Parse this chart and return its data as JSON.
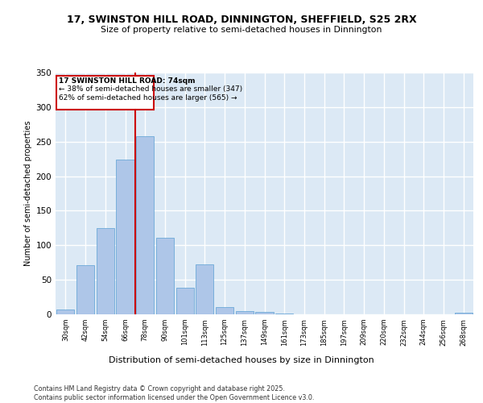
{
  "title1": "17, SWINSTON HILL ROAD, DINNINGTON, SHEFFIELD, S25 2RX",
  "title2": "Size of property relative to semi-detached houses in Dinnington",
  "xlabel": "Distribution of semi-detached houses by size in Dinnington",
  "ylabel": "Number of semi-detached properties",
  "footer1": "Contains HM Land Registry data © Crown copyright and database right 2025.",
  "footer2": "Contains public sector information licensed under the Open Government Licence v3.0.",
  "bar_labels": [
    "30sqm",
    "42sqm",
    "54sqm",
    "66sqm",
    "78sqm",
    "90sqm",
    "101sqm",
    "113sqm",
    "125sqm",
    "137sqm",
    "149sqm",
    "161sqm",
    "173sqm",
    "185sqm",
    "197sqm",
    "209sqm",
    "220sqm",
    "232sqm",
    "244sqm",
    "256sqm",
    "268sqm"
  ],
  "bar_values": [
    7,
    71,
    125,
    224,
    258,
    111,
    38,
    72,
    10,
    5,
    4,
    1,
    0,
    0,
    0,
    0,
    0,
    0,
    0,
    0,
    2
  ],
  "bar_color": "#aec6e8",
  "bar_edge_color": "#5a9fd4",
  "annotation_text1": "17 SWINSTON HILL ROAD: 74sqm",
  "annotation_text2": "← 38% of semi-detached houses are smaller (347)",
  "annotation_text3": "62% of semi-detached houses are larger (565) →",
  "red_line_color": "#cc0000",
  "ylim": [
    0,
    350
  ],
  "yticks": [
    0,
    50,
    100,
    150,
    200,
    250,
    300,
    350
  ],
  "background_color": "#dce9f5",
  "grid_color": "#ffffff"
}
